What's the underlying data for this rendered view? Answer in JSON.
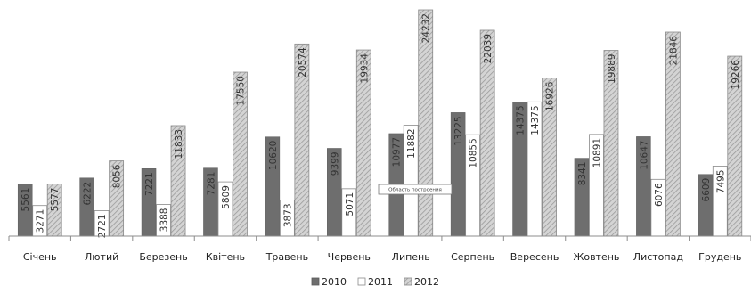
{
  "chart_data": {
    "type": "bar",
    "categories": [
      "Січень",
      "Лютий",
      "Березень",
      "Квітень",
      "Травень",
      "Червень",
      "Липень",
      "Серпень",
      "Вересень",
      "Жовтень",
      "Листопад",
      "Грудень"
    ],
    "series": [
      {
        "name": "2010",
        "values": [
          5561,
          6222,
          7221,
          7281,
          10620,
          9399,
          10977,
          13225,
          14375,
          8341,
          10647,
          6609
        ],
        "labels": [
          "5561",
          "6222",
          "7221",
          "7281",
          "10620",
          "9399",
          "10977",
          "13225",
          "14375",
          "8341",
          "10647",
          "6609"
        ],
        "color": "#6e6e6e",
        "pattern": "solid"
      },
      {
        "name": "2011",
        "values": [
          3271,
          2721,
          3388,
          5809,
          3873,
          5071,
          11882,
          10855,
          14375,
          10891,
          6076,
          7495
        ],
        "labels": [
          "3271",
          "2721",
          "3388",
          "5809",
          "3873",
          "5071",
          "11882",
          "10855",
          "14375",
          "10891",
          "6076",
          "7495"
        ],
        "color": "#ffffff",
        "pattern": "outline"
      },
      {
        "name": "2012",
        "values": [
          5577,
          8056,
          11833,
          17550,
          20574,
          19934,
          24232,
          22039,
          16926,
          19889,
          21846,
          19266
        ],
        "labels": [
          "5577",
          "8056",
          "11833",
          "17550",
          "20574",
          "19934",
          "24232",
          "22039",
          "16926",
          "19889",
          "21846",
          "19266"
        ],
        "color": "#c8c8c8",
        "pattern": "hatched"
      }
    ],
    "ylim": [
      0,
      24232
    ],
    "title": "",
    "xlabel": "",
    "ylabel": "",
    "legend_position": "bottom-center",
    "grid": false,
    "tooltip": "Область построения"
  }
}
